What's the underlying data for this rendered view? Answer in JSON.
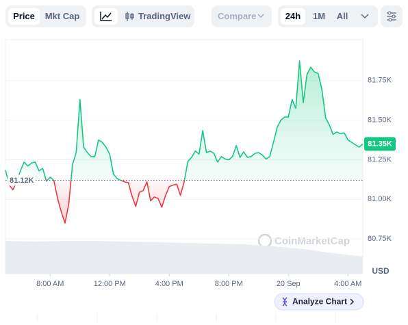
{
  "toolbar": {
    "tabs": [
      "Price",
      "Mkt Cap"
    ],
    "tradingview": "TradingView",
    "compare": "Compare",
    "ranges": [
      "24h",
      "1M",
      "All"
    ]
  },
  "watermark": "CoinMarketCap",
  "analyze_button": "Analyze Chart",
  "chart_data": {
    "type": "line",
    "ylabel": "USD",
    "x": [
      5,
      5.25,
      5.5,
      5.75,
      6,
      6.25,
      6.5,
      6.75,
      7,
      7.25,
      7.5,
      7.75,
      8,
      8.25,
      8.5,
      8.75,
      9,
      9.25,
      9.5,
      9.75,
      10,
      10.25,
      10.5,
      10.75,
      11,
      11.25,
      11.5,
      11.75,
      12,
      12.25,
      12.5,
      12.75,
      13,
      13.25,
      13.5,
      13.75,
      14,
      14.25,
      14.5,
      14.75,
      15,
      15.25,
      15.5,
      15.75,
      16,
      16.25,
      16.5,
      16.75,
      17,
      17.25,
      17.5,
      17.75,
      18,
      18.25,
      18.5,
      18.75,
      19,
      19.25,
      19.5,
      19.75,
      20,
      20.25,
      20.5,
      20.75,
      21,
      21.25,
      21.5,
      21.75,
      22,
      22.25,
      22.5,
      22.75,
      23,
      23.25,
      23.5,
      23.75,
      24,
      24.25,
      24.5,
      24.75,
      25,
      25.25,
      25.5,
      25.75,
      26,
      26.25,
      26.5,
      26.75,
      27,
      27.25,
      27.5,
      27.75,
      28,
      28.25,
      28.5,
      28.75,
      29
    ],
    "values": [
      81185,
      81090,
      81060,
      81110,
      81180,
      81235,
      81210,
      81230,
      81235,
      81180,
      81195,
      81115,
      81140,
      81120,
      81005,
      80920,
      80850,
      80970,
      81220,
      81295,
      81630,
      81330,
      81295,
      81270,
      81270,
      81375,
      81360,
      81330,
      81285,
      81160,
      81130,
      81120,
      81110,
      81105,
      81020,
      80955,
      81045,
      81055,
      81110,
      80990,
      81015,
      81005,
      80950,
      81025,
      81080,
      81090,
      81095,
      81025,
      81110,
      81240,
      81265,
      81305,
      81285,
      81435,
      81295,
      81305,
      81290,
      81235,
      81270,
      81255,
      81250,
      81270,
      81340,
      81265,
      81300,
      81265,
      81270,
      81290,
      81295,
      81280,
      81255,
      81270,
      81360,
      81455,
      81500,
      81520,
      81520,
      81630,
      81575,
      81875,
      81610,
      81790,
      81835,
      81805,
      81795,
      81695,
      81515,
      81470,
      81410,
      81425,
      81415,
      81420,
      81375,
      81360,
      81345,
      81330,
      81350
    ],
    "up_color": "#16c784",
    "down_color": "#ea3943",
    "baseline": {
      "value": 81120,
      "label": "81.12K"
    },
    "last_price": {
      "value": 81350,
      "label": "81.35K"
    },
    "volume": {
      "x": [
        5,
        7,
        9,
        11,
        13,
        15,
        17,
        19,
        21,
        23,
        25,
        27,
        29
      ],
      "values": [
        48,
        47,
        48,
        48,
        47,
        46,
        45,
        44,
        43,
        40,
        36,
        30,
        25
      ],
      "color": "#e9ecf0"
    },
    "xlim": [
      5,
      29
    ],
    "xticks": [
      {
        "value": 8,
        "label": "8:00 AM"
      },
      {
        "value": 12,
        "label": "12:00 PM"
      },
      {
        "value": 16,
        "label": "4:00 PM"
      },
      {
        "value": 20,
        "label": "8:00 PM"
      },
      {
        "value": 24,
        "label": "20 Sep"
      },
      {
        "value": 28,
        "label": "4:00 AM"
      }
    ],
    "ylim": [
      80530,
      82000
    ],
    "yticks": [
      {
        "value": 80750,
        "label": "80.75K"
      },
      {
        "value": 81000,
        "label": "81.00K"
      },
      {
        "value": 81250,
        "label": "81.25K"
      },
      {
        "value": 81500,
        "label": "81.50K"
      },
      {
        "value": 81750,
        "label": "81.75K"
      }
    ],
    "grid": true
  }
}
